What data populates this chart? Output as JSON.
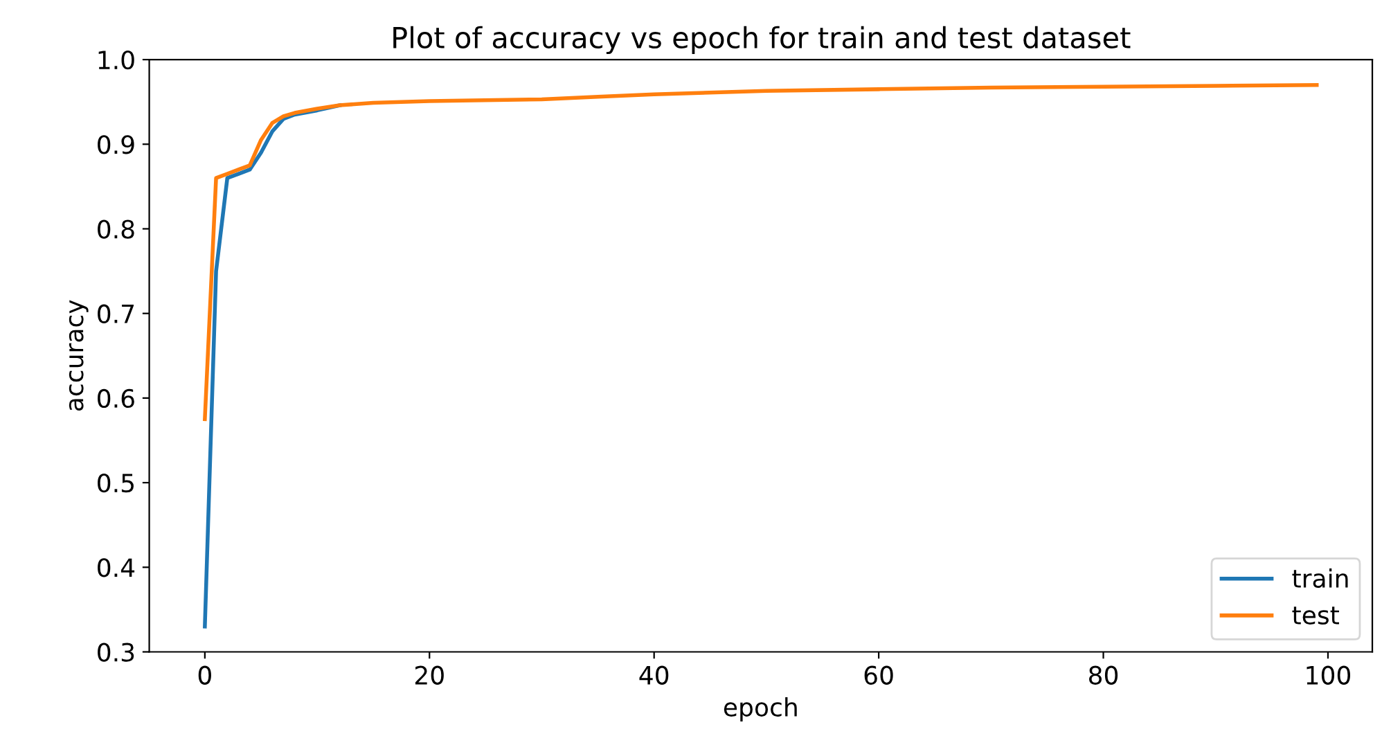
{
  "chart_data": {
    "type": "line",
    "title": "Plot of accuracy vs epoch for train and test dataset",
    "xlabel": "epoch",
    "ylabel": "accuracy",
    "x": [
      0,
      1,
      2,
      3,
      4,
      5,
      6,
      7,
      8,
      10,
      12,
      15,
      20,
      30,
      35,
      40,
      50,
      60,
      70,
      80,
      90,
      99
    ],
    "series": [
      {
        "name": "train",
        "color": "#1f77b4",
        "values": [
          0.33,
          0.75,
          0.86,
          0.865,
          0.87,
          0.89,
          0.915,
          0.93,
          0.935,
          0.94,
          0.946,
          null,
          null,
          null,
          null,
          null,
          null,
          null,
          null,
          null,
          null,
          null
        ]
      },
      {
        "name": "test",
        "color": "#ff7f0e",
        "values": [
          0.575,
          0.86,
          0.865,
          0.87,
          0.875,
          0.905,
          0.925,
          0.933,
          0.937,
          0.942,
          0.946,
          0.949,
          0.951,
          0.953,
          0.956,
          0.959,
          0.963,
          0.965,
          0.967,
          0.968,
          0.969,
          0.97
        ]
      }
    ],
    "xlim": [
      -4.95,
      103.95
    ],
    "xticks": [
      0,
      20,
      40,
      60,
      80,
      100
    ],
    "ylim": [
      0.3,
      1.0
    ],
    "yticks": [
      {
        "value": 0.3,
        "label": "0.3"
      },
      {
        "value": 0.4,
        "label": "0.4"
      },
      {
        "value": 0.5,
        "label": "0.5"
      },
      {
        "value": 0.6,
        "label": "0.6"
      },
      {
        "value": 0.7,
        "label": "0.7"
      },
      {
        "value": 0.8,
        "label": "0.8"
      },
      {
        "value": 0.9,
        "label": "0.9"
      },
      {
        "value": 1.0,
        "label": "1.0"
      }
    ],
    "grid": false,
    "legend": "bottom right"
  }
}
